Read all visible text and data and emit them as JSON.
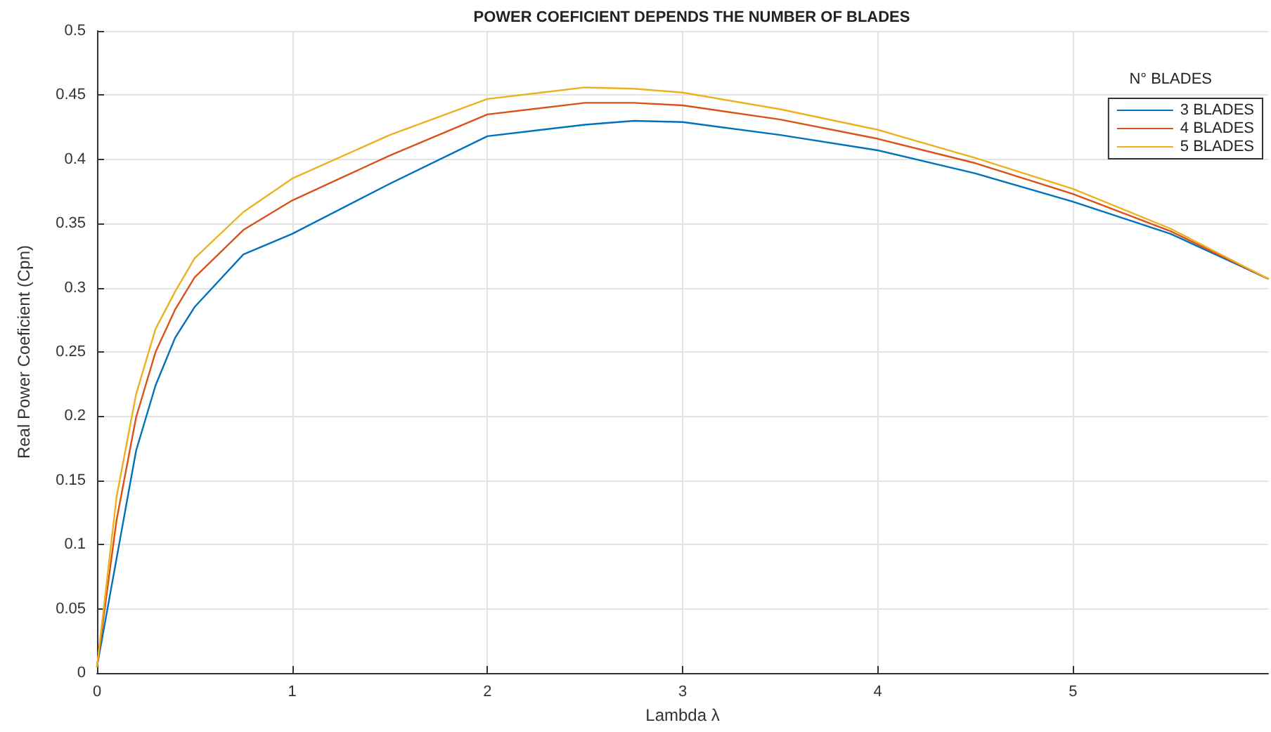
{
  "chart_data": {
    "type": "line",
    "title": "POWER COEFICIENT DEPENDS THE NUMBER OF BLADES",
    "xlabel": "Lambda λ",
    "ylabel": "Real Power Coeficient (Cpn)",
    "legend_title": "N° BLADES",
    "x": [
      0,
      0.1,
      0.2,
      0.3,
      0.4,
      0.5,
      0.75,
      1,
      1.5,
      2,
      2.5,
      2.75,
      3,
      3.5,
      4,
      4.5,
      5,
      5.5,
      6
    ],
    "series": [
      {
        "name": "3 BLADES",
        "color": "#0072bd",
        "values": [
          0.005,
          0.089,
          0.173,
          0.224,
          0.261,
          0.285,
          0.326,
          0.342,
          0.381,
          0.418,
          0.427,
          0.43,
          0.429,
          0.419,
          0.407,
          0.389,
          0.367,
          0.342,
          0.307
        ]
      },
      {
        "name": "4 BLADES",
        "color": "#d95319",
        "values": [
          0.005,
          0.119,
          0.199,
          0.25,
          0.283,
          0.308,
          0.345,
          0.368,
          0.403,
          0.435,
          0.444,
          0.444,
          0.442,
          0.431,
          0.416,
          0.397,
          0.373,
          0.344,
          0.307
        ]
      },
      {
        "name": "5 BLADES",
        "color": "#edb120",
        "values": [
          0.005,
          0.137,
          0.217,
          0.268,
          0.297,
          0.323,
          0.359,
          0.385,
          0.419,
          0.447,
          0.456,
          0.455,
          0.452,
          0.439,
          0.423,
          0.401,
          0.377,
          0.346,
          0.307
        ]
      }
    ],
    "xlim": [
      0,
      6
    ],
    "xticks": [
      0,
      1,
      2,
      3,
      4,
      5
    ],
    "ylim": [
      0,
      0.5
    ],
    "yticks": [
      0,
      0.05,
      0.1,
      0.15,
      0.2,
      0.25,
      0.3,
      0.35,
      0.4,
      0.45,
      0.5
    ],
    "grid": true,
    "legend": "top right",
    "marker": "none",
    "line_style": "solid"
  }
}
